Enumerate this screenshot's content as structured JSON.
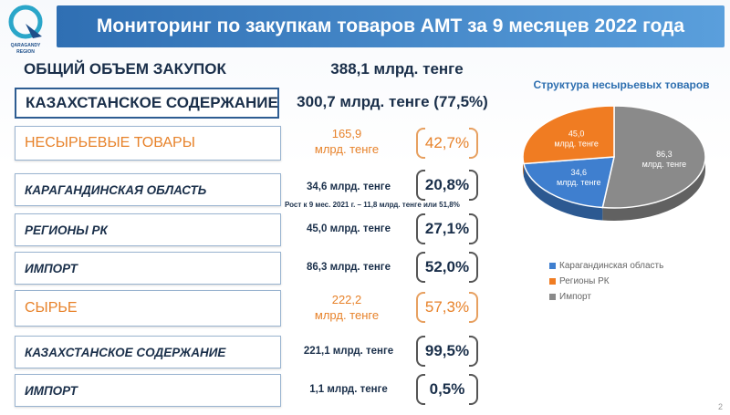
{
  "logo": {
    "line1": "QARAGANDY",
    "line2": "REGION"
  },
  "title": "Мониторинг по закупкам товаров АМТ за 9 месяцев 2022 года",
  "rows": [
    {
      "label": "ОБЩИЙ ОБЪЕМ ЗАКУПОК",
      "value": "388,1 млрд. тенге"
    },
    {
      "label": "КАЗАХСТАНСКОЕ СОДЕРЖАНИЕ",
      "value": "300,7 млрд. тенге (77,5%)"
    },
    {
      "label": "НЕСЫРЬЕВЫЕ ТОВАРЫ",
      "value_line1": "165,9",
      "value_line2": "млрд. тенге",
      "percent": "42,7%"
    },
    {
      "label": "КАРАГАНДИНСКАЯ ОБЛАСТЬ",
      "value": "34,6 млрд. тенге",
      "percent": "20,8%"
    },
    {
      "label": "РЕГИОНЫ РК",
      "value": "45,0 млрд. тенге",
      "percent": "27,1%"
    },
    {
      "label": "ИМПОРТ",
      "value": "86,3 млрд. тенге",
      "percent": "52,0%"
    },
    {
      "label": "СЫРЬЕ",
      "value_line1": "222,2",
      "value_line2": "млрд. тенге",
      "percent": "57,3%"
    },
    {
      "label": "КАЗАХСТАНСКОЕ СОДЕРЖАНИЕ",
      "value": "221,1 млрд. тенге",
      "percent": "99,5%"
    },
    {
      "label": "ИМПОРТ",
      "value": "1,1 млрд. тенге",
      "percent": "0,5%"
    }
  ],
  "growth_note": "Рост к 9 мес. 2021 г. – 11,8 млрд. тенге или 51,8%",
  "chart_data": {
    "type": "pie",
    "title": "Структура несырьевых товаров",
    "categories": [
      "Карагандинская область",
      "Регионы РК",
      "Импорт"
    ],
    "values": [
      34.6,
      45.0,
      86.3
    ],
    "labels": [
      {
        "line1": "34,6",
        "line2": "млрд. тенге"
      },
      {
        "line1": "45,0",
        "line2": "млрд. тенге"
      },
      {
        "line1": "86,3",
        "line2": "млрд. тенге"
      }
    ],
    "colors": [
      "#3f7fcf",
      "#f07c22",
      "#8a8a8a"
    ],
    "legend_position": "bottom"
  },
  "page_number": "2"
}
